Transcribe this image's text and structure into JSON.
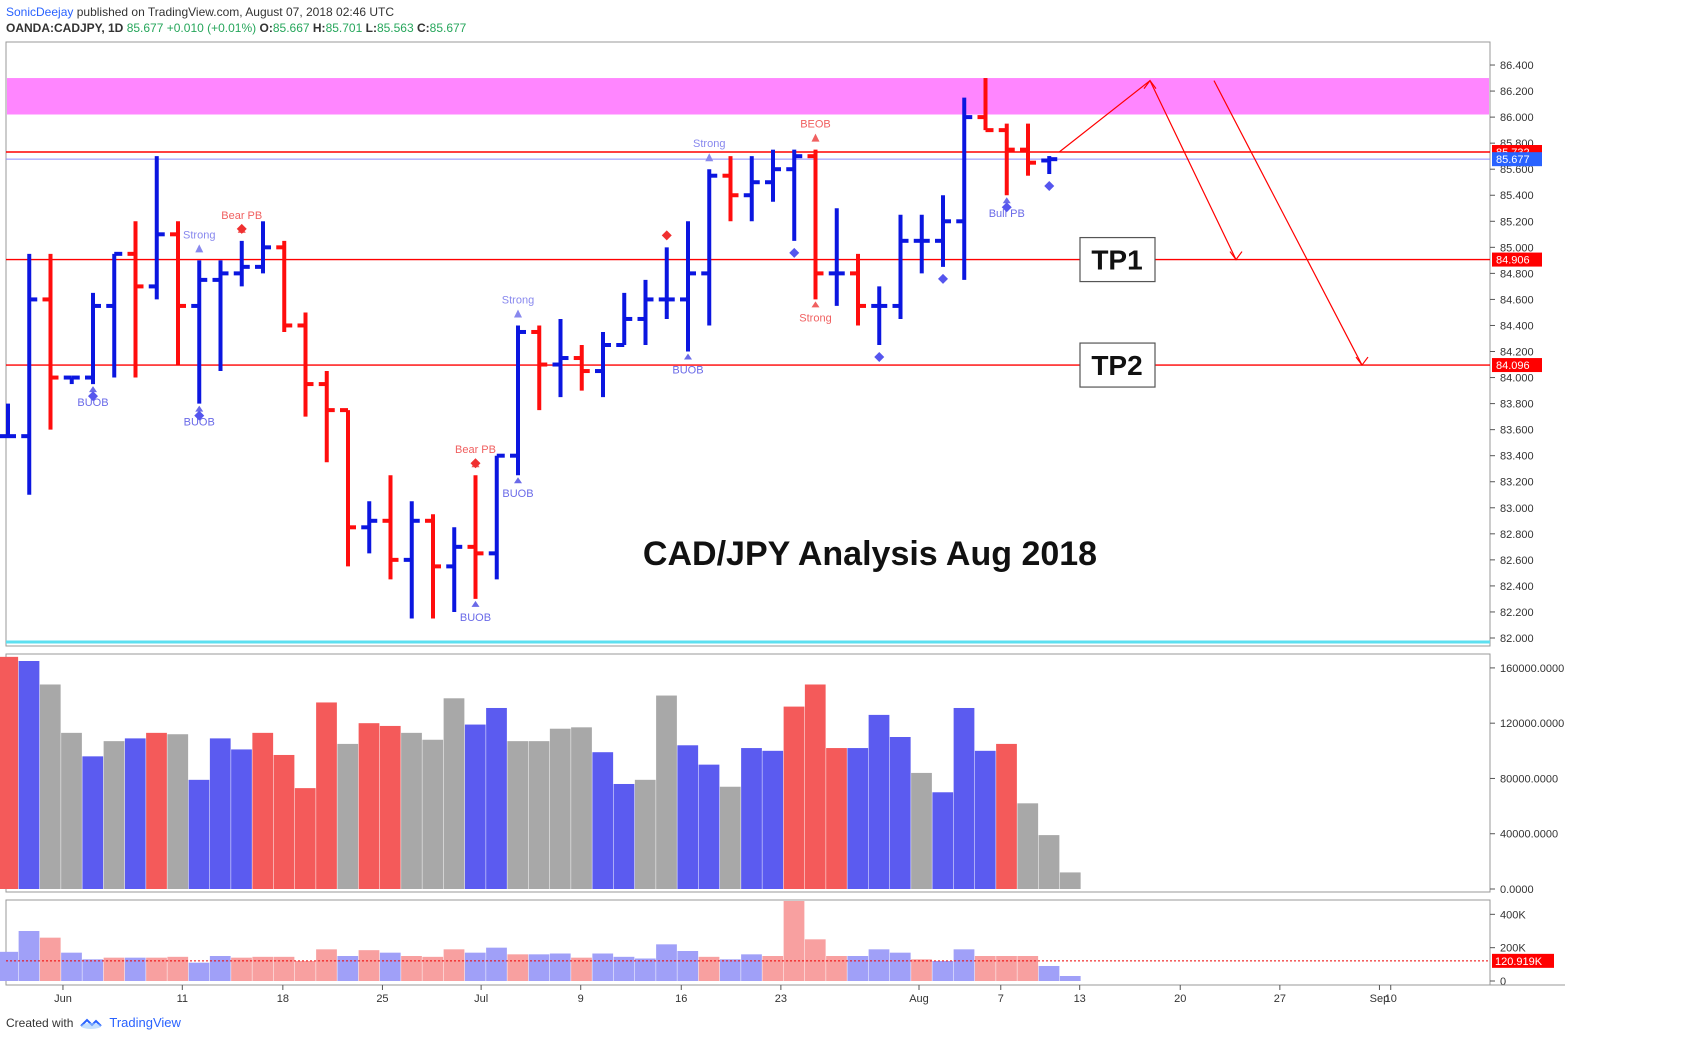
{
  "header": {
    "user": "SonicDeejay",
    "published": "published on TradingView.com, August 07, 2018 02:46 UTC",
    "symbol": "OANDA:CADJPY, 1D",
    "last": "85.677",
    "change": "+0.010 (+0.01%)",
    "o_label": "O:",
    "o_val": "85.667",
    "h_label": "H:",
    "h_val": "85.701",
    "l_label": "L:",
    "l_val": "85.563",
    "c_label": "C:",
    "c_val": "85.677"
  },
  "footer": {
    "created_with": "Created with",
    "brand": "TradingView"
  },
  "colors": {
    "up": "#0b16e0",
    "down": "#ff0d0d",
    "vol_up": "#5b5bf0",
    "vol_down": "#f45a5a",
    "vol_neutral": "#a8a8a8",
    "zone": "#ff80ff",
    "line_red": "#ff0000",
    "tick_bg_red": "#ff0000",
    "tick_bg_blue": "#2962ff"
  },
  "chart_data": [
    {
      "type": "ohlc",
      "title": "CAD/JPY Analysis Aug 2018",
      "ylim": [
        82.0,
        86.5
      ],
      "y_ticks": [
        "86.400",
        "86.200",
        "86.000",
        "85.800",
        "85.600",
        "85.400",
        "85.200",
        "85.000",
        "84.800",
        "84.600",
        "84.400",
        "84.200",
        "84.000",
        "83.800",
        "83.600",
        "83.400",
        "83.200",
        "83.000",
        "82.800",
        "82.600",
        "82.400",
        "82.200",
        "82.000"
      ],
      "x_ticks": [
        "Jun",
        "11",
        "18",
        "25",
        "Jul",
        "9",
        "16",
        "23",
        "Aug",
        "7",
        "13",
        "20",
        "27",
        "Sep",
        "10"
      ],
      "bars": [
        {
          "date": "2018-05-30",
          "o": 83.55,
          "h": 83.8,
          "l": 83.55,
          "c": 83.55
        },
        {
          "date": "2018-05-31",
          "o": 83.55,
          "h": 84.95,
          "l": 83.1,
          "c": 84.6
        },
        {
          "date": "2018-06-01",
          "o": 84.6,
          "h": 84.95,
          "l": 83.6,
          "c": 84.0
        },
        {
          "date": "2018-06-04",
          "o": 84.0,
          "h": 84.0,
          "l": 83.95,
          "c": 84.0
        },
        {
          "date": "2018-06-05",
          "o": 84.0,
          "h": 84.65,
          "l": 83.95,
          "c": 84.55
        },
        {
          "date": "2018-06-06",
          "o": 84.55,
          "h": 84.95,
          "l": 84.0,
          "c": 84.95
        },
        {
          "date": "2018-06-07",
          "o": 84.95,
          "h": 85.2,
          "l": 84.0,
          "c": 84.7
        },
        {
          "date": "2018-06-08",
          "o": 84.7,
          "h": 85.7,
          "l": 84.6,
          "c": 85.1
        },
        {
          "date": "2018-06-11",
          "o": 85.1,
          "h": 85.2,
          "l": 84.1,
          "c": 84.55
        },
        {
          "date": "2018-06-12",
          "o": 84.55,
          "h": 84.9,
          "l": 83.8,
          "c": 84.75
        },
        {
          "date": "2018-06-13",
          "o": 84.75,
          "h": 84.9,
          "l": 84.05,
          "c": 84.8
        },
        {
          "date": "2018-06-14",
          "o": 84.8,
          "h": 85.05,
          "l": 84.7,
          "c": 84.85
        },
        {
          "date": "2018-06-15",
          "o": 84.85,
          "h": 85.2,
          "l": 84.8,
          "c": 85.0
        },
        {
          "date": "2018-06-18",
          "o": 85.0,
          "h": 85.05,
          "l": 84.35,
          "c": 84.4
        },
        {
          "date": "2018-06-19",
          "o": 84.4,
          "h": 84.5,
          "l": 83.7,
          "c": 83.95
        },
        {
          "date": "2018-06-20",
          "o": 83.95,
          "h": 84.05,
          "l": 83.35,
          "c": 83.75
        },
        {
          "date": "2018-06-21",
          "o": 83.75,
          "h": 83.75,
          "l": 82.55,
          "c": 82.85
        },
        {
          "date": "2018-06-22",
          "o": 82.85,
          "h": 83.05,
          "l": 82.65,
          "c": 82.9
        },
        {
          "date": "2018-06-25",
          "o": 82.9,
          "h": 83.25,
          "l": 82.45,
          "c": 82.6
        },
        {
          "date": "2018-06-26",
          "o": 82.6,
          "h": 83.05,
          "l": 82.15,
          "c": 82.9
        },
        {
          "date": "2018-06-27",
          "o": 82.9,
          "h": 82.95,
          "l": 82.15,
          "c": 82.55
        },
        {
          "date": "2018-06-28",
          "o": 82.55,
          "h": 82.85,
          "l": 82.2,
          "c": 82.7
        },
        {
          "date": "2018-06-29",
          "o": 82.7,
          "h": 83.25,
          "l": 82.3,
          "c": 82.65
        },
        {
          "date": "2018-07-02",
          "o": 82.65,
          "h": 83.4,
          "l": 82.45,
          "c": 83.4
        },
        {
          "date": "2018-07-03",
          "o": 83.4,
          "h": 84.4,
          "l": 83.25,
          "c": 84.35
        },
        {
          "date": "2018-07-04",
          "o": 84.35,
          "h": 84.4,
          "l": 83.75,
          "c": 84.1
        },
        {
          "date": "2018-07-05",
          "o": 84.1,
          "h": 84.45,
          "l": 83.85,
          "c": 84.15
        },
        {
          "date": "2018-07-06",
          "o": 84.15,
          "h": 84.25,
          "l": 83.9,
          "c": 84.05
        },
        {
          "date": "2018-07-09",
          "o": 84.05,
          "h": 84.35,
          "l": 83.85,
          "c": 84.25
        },
        {
          "date": "2018-07-10",
          "o": 84.25,
          "h": 84.65,
          "l": 84.25,
          "c": 84.45
        },
        {
          "date": "2018-07-11",
          "o": 84.45,
          "h": 84.75,
          "l": 84.25,
          "c": 84.6
        },
        {
          "date": "2018-07-12",
          "o": 84.6,
          "h": 85.0,
          "l": 84.45,
          "c": 84.6
        },
        {
          "date": "2018-07-13",
          "o": 84.6,
          "h": 85.2,
          "l": 84.2,
          "c": 84.8
        },
        {
          "date": "2018-07-16",
          "o": 84.8,
          "h": 85.6,
          "l": 84.4,
          "c": 85.55
        },
        {
          "date": "2018-07-17",
          "o": 85.55,
          "h": 85.7,
          "l": 85.2,
          "c": 85.4
        },
        {
          "date": "2018-07-18",
          "o": 85.4,
          "h": 85.7,
          "l": 85.2,
          "c": 85.5
        },
        {
          "date": "2018-07-19",
          "o": 85.5,
          "h": 85.75,
          "l": 85.35,
          "c": 85.6
        },
        {
          "date": "2018-07-20",
          "o": 85.6,
          "h": 85.75,
          "l": 85.05,
          "c": 85.7
        },
        {
          "date": "2018-07-23",
          "o": 85.7,
          "h": 85.75,
          "l": 84.6,
          "c": 84.8
        },
        {
          "date": "2018-07-24",
          "o": 84.8,
          "h": 85.3,
          "l": 84.55,
          "c": 84.8
        },
        {
          "date": "2018-07-25",
          "o": 84.8,
          "h": 84.95,
          "l": 84.4,
          "c": 84.55
        },
        {
          "date": "2018-07-26",
          "o": 84.55,
          "h": 84.7,
          "l": 84.25,
          "c": 84.55
        },
        {
          "date": "2018-07-27",
          "o": 84.55,
          "h": 85.25,
          "l": 84.45,
          "c": 85.05
        },
        {
          "date": "2018-07-30",
          "o": 85.05,
          "h": 85.25,
          "l": 84.8,
          "c": 85.05
        },
        {
          "date": "2018-07-31",
          "o": 85.05,
          "h": 85.4,
          "l": 84.85,
          "c": 85.2
        },
        {
          "date": "2018-08-01",
          "o": 85.2,
          "h": 86.15,
          "l": 84.75,
          "c": 86.0
        },
        {
          "date": "2018-08-02",
          "o": 86.0,
          "h": 86.3,
          "l": 85.9,
          "c": 85.9
        },
        {
          "date": "2018-08-03",
          "o": 85.9,
          "h": 85.95,
          "l": 85.4,
          "c": 85.75
        },
        {
          "date": "2018-08-06",
          "o": 85.75,
          "h": 85.95,
          "l": 85.55,
          "c": 85.65
        },
        {
          "date": "2018-08-07",
          "o": 85.667,
          "h": 85.701,
          "l": 85.563,
          "c": 85.677
        }
      ],
      "horizontal_lines": [
        {
          "price": 85.732,
          "label": "85.732"
        },
        {
          "price": 84.906,
          "label": "84.906"
        },
        {
          "price": 84.096,
          "label": "84.096"
        }
      ],
      "last_price": {
        "price": 85.677,
        "label": "85.677"
      },
      "zone": {
        "from": 86.02,
        "to": 86.3
      },
      "targets": [
        {
          "label": "TP1",
          "price": 84.906
        },
        {
          "label": "TP2",
          "price": 84.096
        }
      ],
      "annotations": [
        {
          "text": "BUOB"
        },
        {
          "text": "BUOB"
        },
        {
          "text": "Strong"
        },
        {
          "text": "Bear PB"
        },
        {
          "text": "Strong"
        },
        {
          "text": "Bear PB"
        },
        {
          "text": "BUOB"
        },
        {
          "text": "BUOB"
        },
        {
          "text": "Strong"
        },
        {
          "text": "BUOB"
        },
        {
          "text": "BEOB"
        },
        {
          "text": "Strong"
        },
        {
          "text": "Bull PB"
        }
      ]
    },
    {
      "type": "bar",
      "name": "volume",
      "ylim": [
        0,
        165000
      ],
      "y_ticks": [
        "160000.0000",
        "120000.0000",
        "80000.0000",
        "40000.0000",
        "0.0000"
      ],
      "values": [
        168000,
        165000,
        148000,
        113000,
        96000,
        107000,
        109000,
        113000,
        112000,
        79000,
        109000,
        101000,
        113000,
        97000,
        73000,
        135000,
        105000,
        120000,
        118000,
        113000,
        108000,
        138000,
        119000,
        131000,
        107000,
        107000,
        116000,
        117000,
        99000,
        76000,
        79000,
        140000,
        104000,
        90000,
        74000,
        102000,
        100000,
        132000,
        148000,
        102000,
        102000,
        126000,
        110000,
        84000,
        70000,
        131000,
        100000,
        105000,
        62000,
        39000,
        12000
      ],
      "colors": [
        "down",
        "up",
        "neutral",
        "neutral",
        "up",
        "neutral",
        "up",
        "down",
        "neutral",
        "up",
        "up",
        "up",
        "down",
        "down",
        "down",
        "down",
        "neutral",
        "down",
        "down",
        "neutral",
        "neutral",
        "neutral",
        "up",
        "up",
        "neutral",
        "neutral",
        "neutral",
        "neutral",
        "up",
        "up",
        "neutral",
        "neutral",
        "up",
        "up",
        "neutral",
        "up",
        "up",
        "down",
        "down",
        "down",
        "up",
        "up",
        "up",
        "neutral",
        "up",
        "up",
        "up",
        "down",
        "neutral",
        "neutral",
        "neutral"
      ]
    },
    {
      "type": "bar",
      "name": "volume_oscillator",
      "ylim": [
        0,
        450000
      ],
      "y_ticks": [
        "400K",
        "200K",
        "0"
      ],
      "values": [
        175000,
        300000,
        260000,
        170000,
        130000,
        140000,
        140000,
        140000,
        145000,
        110000,
        150000,
        140000,
        145000,
        145000,
        120000,
        190000,
        150000,
        185000,
        170000,
        150000,
        145000,
        190000,
        170000,
        200000,
        160000,
        160000,
        165000,
        140000,
        165000,
        145000,
        135000,
        220000,
        180000,
        145000,
        130000,
        160000,
        150000,
        480000,
        250000,
        150000,
        150000,
        190000,
        170000,
        130000,
        120000,
        190000,
        150000,
        150000,
        150000,
        90000,
        30000
      ],
      "colors": [
        "up",
        "up",
        "down",
        "up",
        "up",
        "down",
        "up",
        "down",
        "down",
        "up",
        "up",
        "down",
        "down",
        "down",
        "down",
        "down",
        "up",
        "down",
        "up",
        "down",
        "down",
        "down",
        "up",
        "up",
        "down",
        "up",
        "up",
        "down",
        "up",
        "up",
        "up",
        "up",
        "up",
        "down",
        "up",
        "up",
        "down",
        "down",
        "down",
        "down",
        "up",
        "up",
        "up",
        "down",
        "up",
        "up",
        "down",
        "down",
        "down",
        "up",
        "up"
      ],
      "reference_line": {
        "value": 120919,
        "label": "120.919K"
      }
    }
  ]
}
